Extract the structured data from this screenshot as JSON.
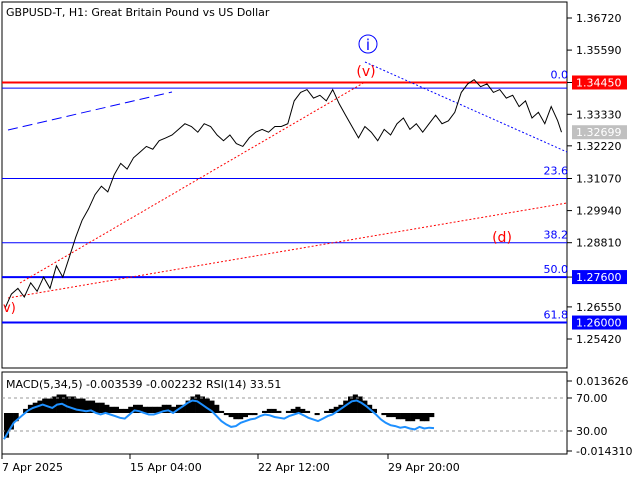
{
  "header": {
    "title": "GBPUSD-T, H1:  Great Britain Pound vs US Dollar"
  },
  "chart_data": {
    "type": "candlestick-line",
    "symbol": "GBPUSD-T",
    "timeframe": "H1",
    "description": "Great Britain Pound vs US Dollar",
    "price_axis": {
      "ticks": [
        1.3672,
        1.3559,
        1.3445,
        1.3333,
        1.3222,
        1.3107,
        1.2994,
        1.2881,
        1.276,
        1.2655,
        1.2542
      ],
      "tick_labels": [
        "1.36720",
        "1.35590",
        "1.34450",
        "1.33330",
        "1.32220",
        "1.31070",
        "1.29940",
        "1.28810",
        "1.27600",
        "1.26550",
        "1.25420"
      ],
      "highlighted": [
        {
          "label": "1.34450",
          "value": 1.3445,
          "bg": "#ff0000",
          "fg": "#ffffff"
        },
        {
          "label": "1.32699",
          "value": 1.32699,
          "bg": "#c0c0c0",
          "fg": "#ffffff"
        },
        {
          "label": "1.27600",
          "value": 1.276,
          "bg": "#0000ff",
          "fg": "#ffffff"
        },
        {
          "label": "1.26000",
          "value": 1.26,
          "bg": "#0000ff",
          "fg": "#ffffff"
        }
      ]
    },
    "time_axis": {
      "labels": [
        "7 Apr 2025",
        "15 Apr 04:00",
        "22 Apr 12:00",
        "29 Apr 20:00"
      ]
    },
    "levels": [
      {
        "label": "0.0",
        "value": 1.3445,
        "color": "#ff0000",
        "width": 2
      },
      {
        "label": "",
        "value": 1.3425,
        "color": "#0000ff",
        "width": 1
      },
      {
        "label": "23.6",
        "value": 1.3107,
        "color": "#0000ff",
        "width": 1
      },
      {
        "label": "38.2",
        "value": 1.2881,
        "color": "#0000ff",
        "width": 1
      },
      {
        "label": "50.0",
        "value": 1.276,
        "color": "#0000ff",
        "width": 2
      },
      {
        "label": "61.8",
        "value": 1.26,
        "color": "#0000ff",
        "width": 2
      }
    ],
    "wave_labels": [
      {
        "text": "i",
        "color": "#0000ff",
        "circled": true
      },
      {
        "text": "(v)",
        "color": "#ff0000"
      },
      {
        "text": "(d)",
        "color": "#ff0000"
      },
      {
        "text": "v)",
        "color": "#ff0000"
      }
    ],
    "price_series": [
      [
        0,
        1.265
      ],
      [
        5,
        1.27
      ],
      [
        10,
        1.272
      ],
      [
        15,
        1.269
      ],
      [
        20,
        1.274
      ],
      [
        25,
        1.271
      ],
      [
        30,
        1.276
      ],
      [
        35,
        1.272
      ],
      [
        40,
        1.28
      ],
      [
        45,
        1.276
      ],
      [
        50,
        1.283
      ],
      [
        55,
        1.29
      ],
      [
        60,
        1.296
      ],
      [
        65,
        1.3
      ],
      [
        70,
        1.305
      ],
      [
        75,
        1.308
      ],
      [
        80,
        1.306
      ],
      [
        85,
        1.312
      ],
      [
        90,
        1.316
      ],
      [
        95,
        1.314
      ],
      [
        100,
        1.318
      ],
      [
        105,
        1.32
      ],
      [
        110,
        1.322
      ],
      [
        115,
        1.321
      ],
      [
        120,
        1.324
      ],
      [
        125,
        1.325
      ],
      [
        130,
        1.326
      ],
      [
        135,
        1.328
      ],
      [
        140,
        1.33
      ],
      [
        145,
        1.329
      ],
      [
        150,
        1.327
      ],
      [
        155,
        1.33
      ],
      [
        160,
        1.329
      ],
      [
        165,
        1.326
      ],
      [
        170,
        1.324
      ],
      [
        175,
        1.326
      ],
      [
        180,
        1.323
      ],
      [
        185,
        1.322
      ],
      [
        190,
        1.325
      ],
      [
        195,
        1.327
      ],
      [
        200,
        1.328
      ],
      [
        205,
        1.327
      ],
      [
        210,
        1.329
      ],
      [
        215,
        1.329
      ],
      [
        220,
        1.33
      ],
      [
        225,
        1.338
      ],
      [
        230,
        1.341
      ],
      [
        235,
        1.342
      ],
      [
        240,
        1.339
      ],
      [
        245,
        1.34
      ],
      [
        250,
        1.338
      ],
      [
        255,
        1.342
      ],
      [
        260,
        1.337
      ],
      [
        265,
        1.333
      ],
      [
        270,
        1.329
      ],
      [
        275,
        1.325
      ],
      [
        280,
        1.329
      ],
      [
        285,
        1.327
      ],
      [
        290,
        1.324
      ],
      [
        295,
        1.328
      ],
      [
        300,
        1.326
      ],
      [
        305,
        1.33
      ],
      [
        310,
        1.332
      ],
      [
        315,
        1.328
      ],
      [
        320,
        1.33
      ],
      [
        325,
        1.327
      ],
      [
        330,
        1.33
      ],
      [
        335,
        1.333
      ],
      [
        340,
        1.33
      ],
      [
        345,
        1.331
      ],
      [
        350,
        1.334
      ],
      [
        355,
        1.341
      ],
      [
        360,
        1.344
      ],
      [
        365,
        1.3455
      ],
      [
        370,
        1.343
      ],
      [
        375,
        1.344
      ],
      [
        380,
        1.341
      ],
      [
        385,
        1.342
      ],
      [
        390,
        1.339
      ],
      [
        395,
        1.34
      ],
      [
        400,
        1.336
      ],
      [
        405,
        1.338
      ],
      [
        410,
        1.332
      ],
      [
        415,
        1.334
      ],
      [
        420,
        1.33
      ],
      [
        425,
        1.336
      ],
      [
        430,
        1.331
      ],
      [
        433,
        1.32699
      ]
    ],
    "indicator": {
      "label": "MACD(5,34,5) -0.003539 -0.002232 RSI(14) 33.51",
      "axis_labels": [
        "0.013626",
        "70.00",
        "30.00",
        "-0.014310"
      ],
      "rsi_levels": [
        70,
        30
      ],
      "macd_range": [
        -0.01431,
        0.013626
      ],
      "macd_hist": [
        -0.012,
        -0.008,
        -0.004,
        0.0,
        0.002,
        0.004,
        0.005,
        0.006,
        0.007,
        0.007,
        0.008,
        0.009,
        0.009,
        0.008,
        0.008,
        0.007,
        0.007,
        0.006,
        0.006,
        0.005,
        0.005,
        0.004,
        0.003,
        0.003,
        0.002,
        0.002,
        0.003,
        0.004,
        0.004,
        0.003,
        0.003,
        0.003,
        0.003,
        0.004,
        0.004,
        0.003,
        0.004,
        0.004,
        0.006,
        0.008,
        0.009,
        0.008,
        0.007,
        0.006,
        0.004,
        0.001,
        -0.001,
        -0.002,
        -0.003,
        -0.003,
        -0.002,
        -0.001,
        -0.001,
        0.0,
        0.001,
        0.002,
        0.002,
        0.001,
        0.0,
        0.001,
        0.002,
        0.003,
        0.002,
        0.001,
        0.0,
        -0.001,
        0.0,
        0.001,
        0.002,
        0.003,
        0.004,
        0.006,
        0.008,
        0.009,
        0.008,
        0.006,
        0.004,
        0.002,
        0.0,
        -0.001,
        -0.002,
        -0.002,
        -0.003,
        -0.003,
        -0.004,
        -0.004,
        -0.003,
        -0.004,
        -0.004,
        -0.002
      ],
      "rsi": [
        20,
        30,
        40,
        45,
        50,
        55,
        58,
        60,
        62,
        60,
        58,
        62,
        63,
        60,
        58,
        56,
        55,
        54,
        55,
        52,
        50,
        52,
        50,
        48,
        46,
        45,
        50,
        55,
        54,
        52,
        50,
        50,
        52,
        54,
        55,
        52,
        56,
        60,
        64,
        67,
        66,
        62,
        58,
        54,
        48,
        42,
        38,
        35,
        36,
        40,
        42,
        44,
        45,
        48,
        50,
        49,
        47,
        46,
        45,
        48,
        50,
        52,
        49,
        46,
        44,
        42,
        45,
        48,
        50,
        54,
        58,
        62,
        66,
        67,
        64,
        60,
        55,
        50,
        44,
        40,
        37,
        36,
        34,
        35,
        33,
        32,
        35,
        33,
        34,
        33.5
      ]
    }
  }
}
